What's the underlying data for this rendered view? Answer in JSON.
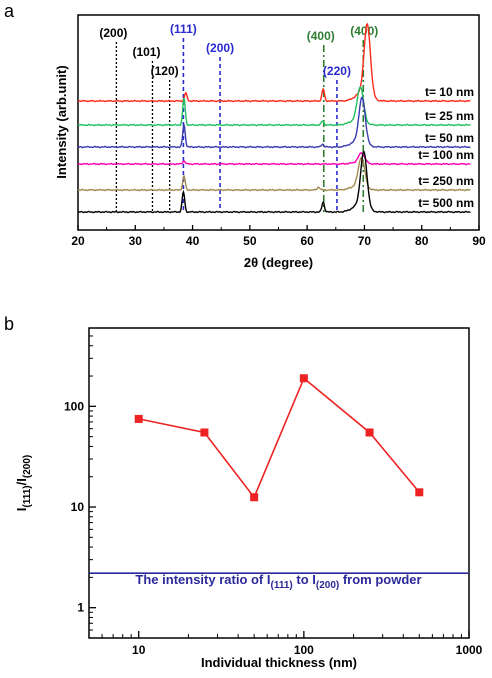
{
  "chart_data": [
    {
      "panel": "a",
      "type": "line",
      "xlabel": "2θ (degree)",
      "ylabel": "Intensity (arb.unit)",
      "xlim": [
        20,
        90
      ],
      "xticks": [
        20,
        30,
        40,
        50,
        60,
        70,
        80,
        90
      ],
      "series": [
        {
          "name": "t= 10 nm",
          "color": "#ff2a1a",
          "peaks": [
            {
              "x": 38.8,
              "h": 8
            },
            {
              "x": 62.8,
              "h": 12
            },
            {
              "x": 70.5,
              "h": 70
            }
          ]
        },
        {
          "name": "t= 25 nm",
          "color": "#22c060",
          "peaks": [
            {
              "x": 38.5,
              "h": 27
            },
            {
              "x": 62.7,
              "h": 4
            },
            {
              "x": 69.3,
              "h": 35
            }
          ]
        },
        {
          "name": "t= 50 nm",
          "color": "#3a3ab0",
          "peaks": [
            {
              "x": 38.5,
              "h": 22
            },
            {
              "x": 62.7,
              "h": 3
            },
            {
              "x": 69.6,
              "h": 45
            }
          ]
        },
        {
          "name": "t= 100 nm",
          "color": "#ff00b0",
          "peaks": [
            {
              "x": 38.5,
              "h": 3
            },
            {
              "x": 69.5,
              "h": 10
            }
          ]
        },
        {
          "name": "t= 250 nm",
          "color": "#a08a50",
          "peaks": [
            {
              "x": 38.5,
              "h": 14
            },
            {
              "x": 62.0,
              "h": 3
            },
            {
              "x": 69.5,
              "h": 30
            }
          ]
        },
        {
          "name": "t= 500 nm",
          "color": "#000000",
          "peaks": [
            {
              "x": 38.4,
              "h": 20
            },
            {
              "x": 62.8,
              "h": 10
            },
            {
              "x": 69.9,
              "h": 55
            }
          ]
        }
      ],
      "reference_lines": [
        {
          "label": "(200)",
          "x": 26.7,
          "color": "#000000",
          "style": "dotted"
        },
        {
          "label": "(101)",
          "x": 33.0,
          "color": "#000000",
          "style": "dotted"
        },
        {
          "label": "(120)",
          "x": 36.0,
          "color": "#000000",
          "style": "dotted"
        },
        {
          "label": "(111)",
          "x": 38.4,
          "color": "#2a2ad0",
          "style": "dashed"
        },
        {
          "label": "(200)",
          "x": 44.8,
          "color": "#2a2ad0",
          "style": "dashed"
        },
        {
          "label": "(400)",
          "x": 62.9,
          "color": "#2e7d32",
          "style": "dashdot"
        },
        {
          "label": "(220)",
          "x": 65.2,
          "color": "#2a2ad0",
          "style": "dashed"
        },
        {
          "label": "(400)",
          "x": 69.8,
          "color": "#2e7d32",
          "style": "dashdot"
        }
      ]
    },
    {
      "panel": "b",
      "type": "line",
      "xlabel": "Individual thickness (nm)",
      "ylabel": "I(111)/I(200)",
      "xscale": "log",
      "yscale": "log",
      "xlim": [
        5,
        1000
      ],
      "ylim": [
        0.5,
        600
      ],
      "xticks": [
        10,
        100,
        1000
      ],
      "yticks": [
        1,
        10,
        100
      ],
      "series": [
        {
          "name": "",
          "color": "#ee2222",
          "marker": "square",
          "x": [
            10,
            25,
            50,
            100,
            250,
            500
          ],
          "y": [
            75,
            55,
            12.5,
            190,
            55,
            14
          ]
        }
      ],
      "reference": {
        "y": 2.2,
        "color": "#2a2a9a",
        "label": {
          "pre": "The intensity ratio of I",
          "sub1": "(111)",
          "mid": " to I",
          "sub2": "(200)",
          "post": " from powder"
        }
      }
    }
  ],
  "labels": {
    "panel_a": "a",
    "panel_b": "b"
  }
}
